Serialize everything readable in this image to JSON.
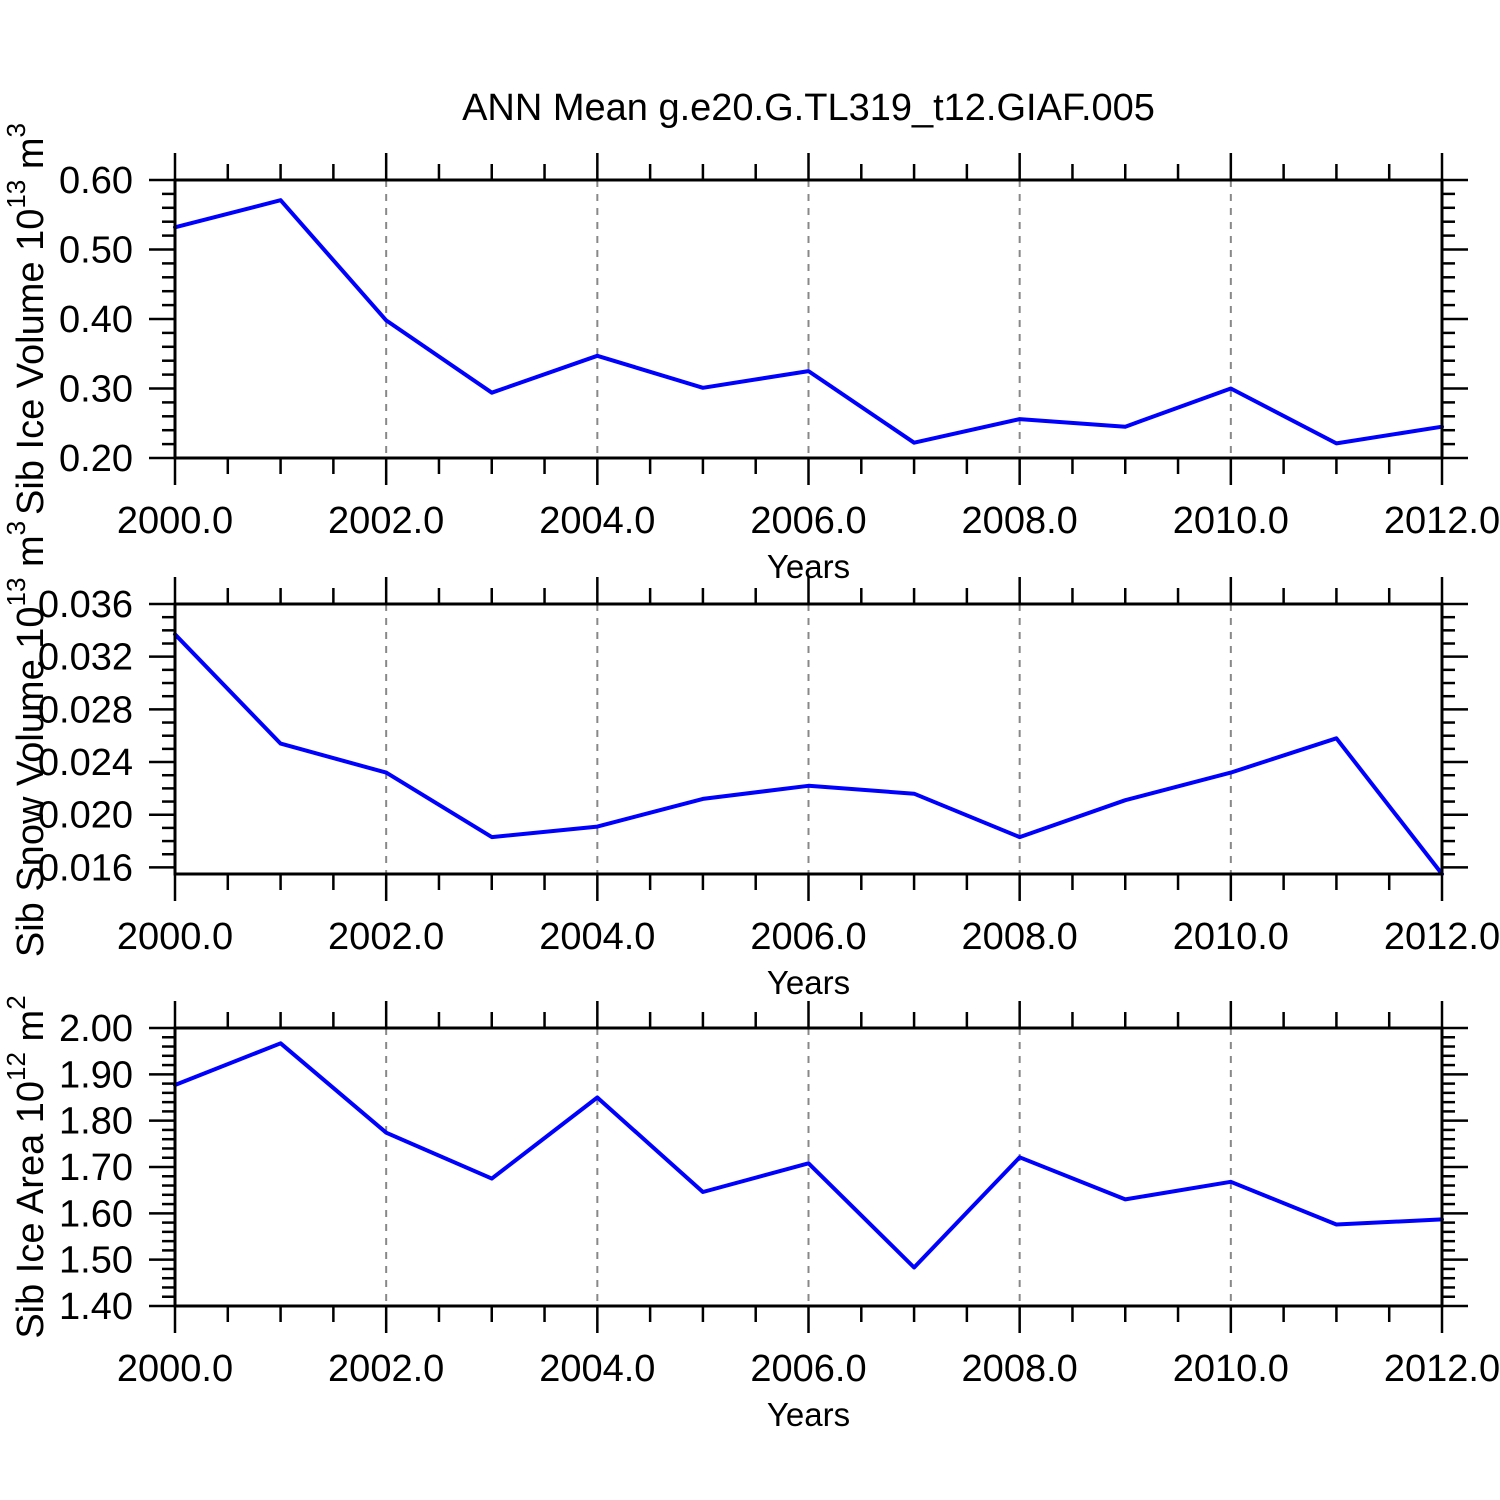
{
  "page": {
    "title": "ANN Mean g.e20.G.TL319_t12.GIAF.005"
  },
  "style": {
    "line_color": "#0000ff",
    "axis_color": "#000000",
    "grid_color": "#888888",
    "text_color": "#000000",
    "background": "#ffffff"
  },
  "x_axis": {
    "label": "Years",
    "range": [
      2000,
      2012
    ],
    "major_ticks": [
      2000,
      2002,
      2004,
      2006,
      2008,
      2010,
      2012
    ],
    "major_tick_labels": [
      "2000.0",
      "2002.0",
      "2004.0",
      "2006.0",
      "2008.0",
      "2010.0",
      "2012.0"
    ],
    "minor_step": 0.5,
    "grid_years": [
      2002,
      2004,
      2006,
      2008,
      2010
    ]
  },
  "chart_data": [
    {
      "type": "line",
      "name": "sib-ice-volume",
      "ylabel": "Sib Ice Volume 10^13 m^3",
      "ylabel_parts": [
        [
          "Sib Ice Volume 10",
          0
        ],
        [
          "13",
          1
        ],
        [
          " m",
          0
        ],
        [
          "3",
          1
        ]
      ],
      "xlabel": "Years",
      "x": [
        2000,
        2001,
        2002,
        2003,
        2004,
        2005,
        2006,
        2007,
        2008,
        2009,
        2010,
        2011,
        2012
      ],
      "values": [
        0.532,
        0.571,
        0.398,
        0.294,
        0.347,
        0.301,
        0.325,
        0.222,
        0.256,
        0.245,
        0.3,
        0.221,
        0.245
      ],
      "ylim": [
        0.2,
        0.6
      ],
      "yticks": [
        0.2,
        0.3,
        0.4,
        0.5,
        0.6
      ],
      "ytick_labels": [
        "0.20",
        "0.30",
        "0.40",
        "0.50",
        "0.60"
      ],
      "y_minor_step": 0.02,
      "grid": "dashed-vertical"
    },
    {
      "type": "line",
      "name": "sib-snow-volume",
      "ylabel": "Sib Snow Volume 10^13 m^3",
      "ylabel_parts": [
        [
          "Sib Snow Volume 10",
          0
        ],
        [
          "13",
          1
        ],
        [
          " m",
          0
        ],
        [
          "3",
          1
        ]
      ],
      "xlabel": "Years",
      "x": [
        2000,
        2001,
        2002,
        2003,
        2004,
        2005,
        2006,
        2007,
        2008,
        2009,
        2010,
        2011,
        2012
      ],
      "values": [
        0.0337,
        0.0254,
        0.0232,
        0.0183,
        0.0191,
        0.0212,
        0.0222,
        0.0216,
        0.0183,
        0.0211,
        0.0232,
        0.0258,
        0.0155
      ],
      "ylim": [
        0.0155,
        0.036
      ],
      "yticks": [
        0.016,
        0.02,
        0.024,
        0.028,
        0.032,
        0.036
      ],
      "ytick_labels": [
        "0.016",
        "0.020",
        "0.024",
        "0.028",
        "0.032",
        "0.036"
      ],
      "y_minor_step": 0.001,
      "grid": "dashed-vertical"
    },
    {
      "type": "line",
      "name": "sib-ice-area",
      "ylabel": "Sib Ice Area 10^12 m^2",
      "ylabel_parts": [
        [
          "Sib Ice Area 10",
          0
        ],
        [
          "12",
          1
        ],
        [
          " m",
          0
        ],
        [
          "2",
          1
        ]
      ],
      "xlabel": "Years",
      "x": [
        2000,
        2001,
        2002,
        2003,
        2004,
        2005,
        2006,
        2007,
        2008,
        2009,
        2010,
        2011,
        2012
      ],
      "values": [
        1.877,
        1.967,
        1.774,
        1.675,
        1.85,
        1.646,
        1.708,
        1.483,
        1.721,
        1.63,
        1.668,
        1.576,
        1.587
      ],
      "ylim": [
        1.4,
        2.0
      ],
      "yticks": [
        1.4,
        1.5,
        1.6,
        1.7,
        1.8,
        1.9,
        2.0
      ],
      "ytick_labels": [
        "1.40",
        "1.50",
        "1.60",
        "1.70",
        "1.80",
        "1.90",
        "2.00"
      ],
      "y_minor_step": 0.02,
      "grid": "dashed-vertical"
    }
  ]
}
